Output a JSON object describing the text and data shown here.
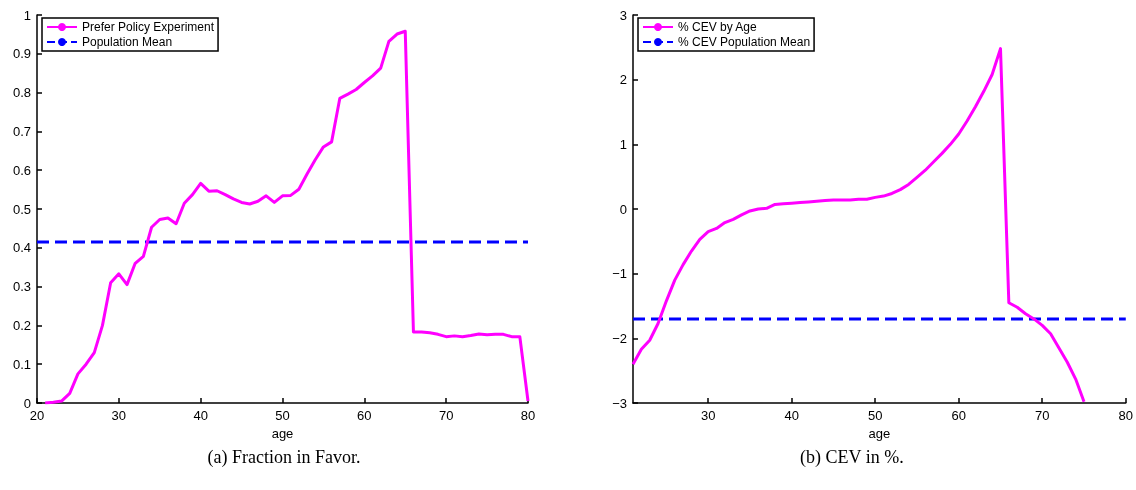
{
  "chart_data": [
    {
      "type": "line",
      "xlabel": "age",
      "xlim": [
        20,
        80
      ],
      "xticks": [
        20,
        30,
        40,
        50,
        60,
        70,
        80
      ],
      "ylim": [
        0,
        1
      ],
      "yticks": [
        0,
        0.1,
        0.2,
        0.3,
        0.4,
        0.5,
        0.6,
        0.7,
        0.8,
        0.9,
        1
      ],
      "legend": "top left",
      "grid": false,
      "marker": "none",
      "annotations": [
        "(a) Fraction in Favor."
      ],
      "series": [
        {
          "name": "Prefer Policy Experiment",
          "color": "#ff00ff",
          "line_style": "solid",
          "x": [
            21,
            22,
            23,
            24,
            25,
            26,
            27,
            28,
            29,
            30,
            31,
            32,
            33,
            34,
            35,
            36,
            37,
            38,
            39,
            40,
            41,
            42,
            43,
            44,
            45,
            46,
            47,
            48,
            49,
            50,
            51,
            52,
            53,
            54,
            55,
            56,
            57,
            58,
            59,
            60,
            61,
            62,
            63,
            64,
            65,
            66,
            67,
            68,
            69,
            70,
            71,
            72,
            73,
            74,
            75,
            76,
            77,
            78,
            79,
            80
          ],
          "values": [
            0,
            0.002,
            0.005,
            0.025,
            0.075,
            0.1,
            0.13,
            0.2,
            0.31,
            0.333,
            0.305,
            0.36,
            0.378,
            0.453,
            0.473,
            0.477,
            0.462,
            0.515,
            0.537,
            0.566,
            0.546,
            0.547,
            0.537,
            0.526,
            0.517,
            0.513,
            0.52,
            0.534,
            0.517,
            0.534,
            0.535,
            0.551,
            0.59,
            0.627,
            0.66,
            0.673,
            0.785,
            0.796,
            0.808,
            0.826,
            0.843,
            0.863,
            0.932,
            0.951,
            0.958,
            0.183,
            0.183,
            0.181,
            0.177,
            0.171,
            0.173,
            0.171,
            0.174,
            0.178,
            0.176,
            0.177,
            0.177,
            0.171,
            0.171,
            0.005
          ]
        },
        {
          "name": "Population Mean",
          "color": "#0000ff",
          "line_style": "dashed",
          "x": [
            20,
            80
          ],
          "values": [
            0.415,
            0.415
          ]
        }
      ]
    },
    {
      "type": "line",
      "xlabel": "age",
      "xlim": [
        21,
        80
      ],
      "xticks": [
        30,
        40,
        50,
        60,
        70,
        80
      ],
      "ylim": [
        -3,
        3
      ],
      "yticks": [
        -3,
        -2,
        -1,
        0,
        1,
        2,
        3
      ],
      "legend": "top left",
      "grid": false,
      "marker": "none",
      "annotations": [
        "(b) CEV in %."
      ],
      "series": [
        {
          "name": "% CEV by Age",
          "color": "#ff00ff",
          "line_style": "solid",
          "x": [
            21,
            22,
            23,
            24,
            25,
            26,
            27,
            28,
            29,
            30,
            31,
            32,
            33,
            34,
            35,
            36,
            37,
            38,
            39,
            40,
            41,
            42,
            43,
            44,
            45,
            46,
            47,
            48,
            49,
            50,
            51,
            52,
            53,
            54,
            55,
            56,
            57,
            58,
            59,
            60,
            61,
            62,
            63,
            64,
            65,
            66,
            67,
            68,
            69,
            70,
            71,
            72,
            73,
            74,
            75
          ],
          "values": [
            -2.4,
            -2.17,
            -2.03,
            -1.77,
            -1.42,
            -1.1,
            -0.86,
            -0.65,
            -0.47,
            -0.35,
            -0.3,
            -0.21,
            -0.16,
            -0.09,
            -0.03,
            0,
            0.01,
            0.07,
            0.08,
            0.09,
            0.1,
            0.11,
            0.12,
            0.13,
            0.14,
            0.14,
            0.14,
            0.15,
            0.15,
            0.18,
            0.2,
            0.24,
            0.3,
            0.38,
            0.49,
            0.6,
            0.73,
            0.86,
            1,
            1.16,
            1.36,
            1.58,
            1.82,
            2.08,
            2.48,
            -1.45,
            -1.52,
            -1.62,
            -1.7,
            -1.8,
            -1.93,
            -2.15,
            -2.37,
            -2.63,
            -2.98
          ]
        },
        {
          "name": "% CEV Population Mean",
          "color": "#0000ff",
          "line_style": "dashed",
          "x": [
            21,
            80
          ],
          "values": [
            -1.7,
            -1.7
          ]
        }
      ]
    }
  ]
}
